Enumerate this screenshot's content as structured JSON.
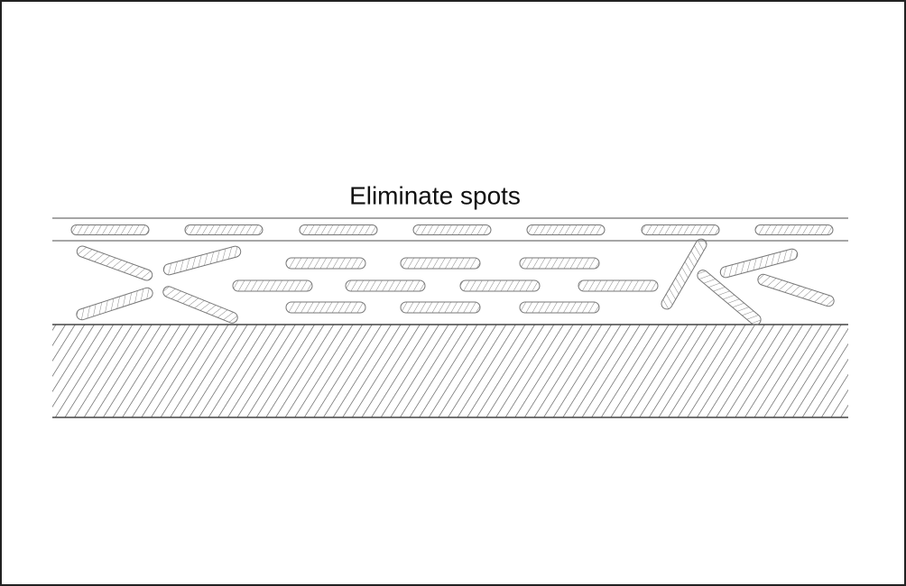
{
  "title": "Eliminate spots"
}
